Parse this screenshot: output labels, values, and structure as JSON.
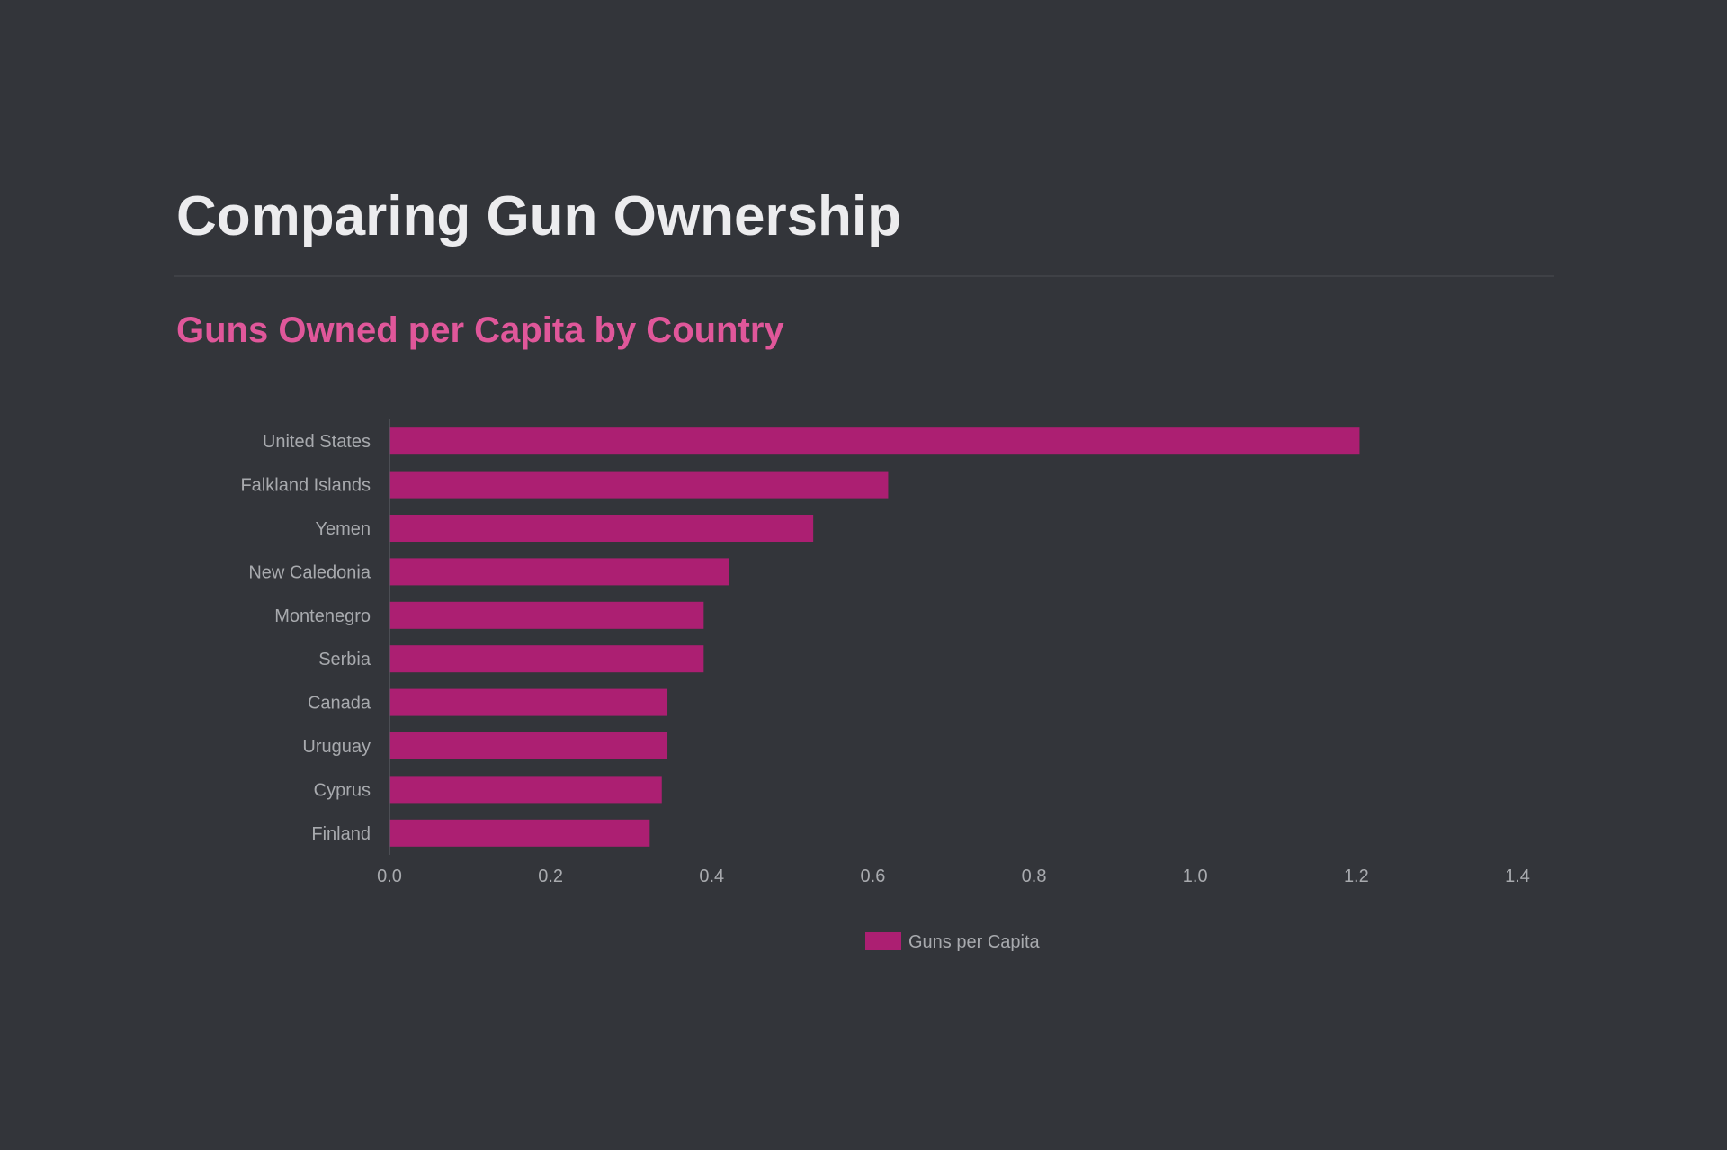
{
  "header": {
    "title": "Comparing Gun Ownership",
    "subtitle": "Guns Owned per Capita by Country"
  },
  "colors": {
    "background": "#33353a",
    "bar": "#ac1f72",
    "subtitle": "#e0579a",
    "title": "#ececee",
    "label": "#a8aaae"
  },
  "chart_data": {
    "type": "bar",
    "orientation": "horizontal",
    "title": "Guns Owned per Capita by Country",
    "categories": [
      "United States",
      "Falkland Islands",
      "Yemen",
      "New Caledonia",
      "Montenegro",
      "Serbia",
      "Canada",
      "Uruguay",
      "Cyprus",
      "Finland"
    ],
    "series": [
      {
        "name": "Guns per Capita",
        "values": [
          1.204,
          0.619,
          0.526,
          0.422,
          0.39,
          0.39,
          0.345,
          0.345,
          0.338,
          0.323
        ]
      }
    ],
    "xlim": [
      0,
      1.4
    ],
    "xticks": [
      "0.0",
      "0.2",
      "0.4",
      "0.6",
      "0.8",
      "1.0",
      "1.2",
      "1.4"
    ],
    "grid": false,
    "legend": "bottom-center"
  }
}
